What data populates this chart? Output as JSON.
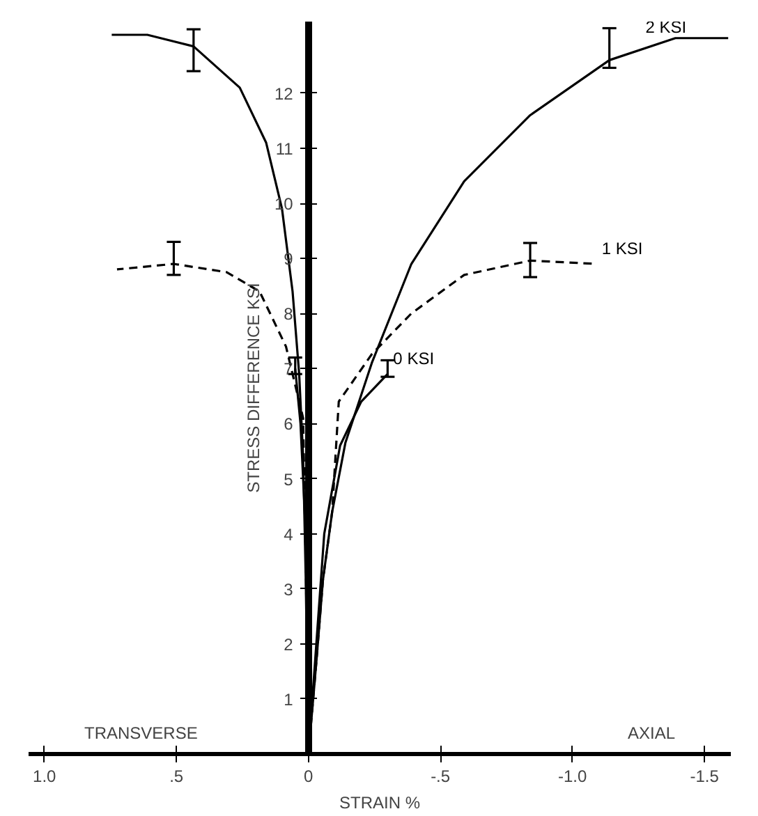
{
  "chart_data": {
    "type": "line",
    "xlabel": "STRAIN %",
    "ylabel": "STRESS DIFFERENCE KSI",
    "xlim": [
      1.06,
      -1.6
    ],
    "ylim": [
      0,
      13.3
    ],
    "xticks": [
      {
        "value": 1.0,
        "label": "1.0"
      },
      {
        "value": 0.5,
        "label": ".5"
      },
      0,
      {
        "value": -0.5,
        "label": "-.5"
      },
      {
        "value": -1.0,
        "label": "-1.0"
      },
      {
        "value": -1.5,
        "label": "-1.5"
      }
    ],
    "yticks": [
      1,
      2,
      3,
      4,
      5,
      6,
      7,
      8,
      9,
      10,
      11,
      12
    ],
    "grid": false,
    "marker": "none",
    "line_style": "solid",
    "annotations": [
      "TRANSVERSE",
      "AXIAL"
    ],
    "series": [
      {
        "color": "#000000",
        "x": [
          0,
          0.01,
          0.02,
          0.035,
          0.06,
          0.1,
          0.16,
          0.26,
          0.435,
          0.61,
          0.745
        ],
        "values": [
          0,
          3.16,
          5.4,
          6.9,
          8.4,
          9.9,
          11.1,
          12.1,
          12.85,
          13.06,
          13.06
        ],
        "errors": [
          null,
          null,
          null,
          null,
          null,
          null,
          null,
          null,
          [
            12.4,
            13.16
          ],
          null,
          null
        ]
      },
      {
        "name": "2 KSI",
        "color": "#000000",
        "x": [
          0,
          -0.03,
          -0.055,
          -0.09,
          -0.14,
          -0.24,
          -0.39,
          -0.59,
          -0.84,
          -1.14,
          -1.39,
          -1.59
        ],
        "values": [
          0,
          1.67,
          3.16,
          4.4,
          5.65,
          7.1,
          8.9,
          10.4,
          11.6,
          12.6,
          13.0,
          13.0
        ],
        "errors": [
          null,
          null,
          null,
          null,
          null,
          null,
          null,
          null,
          null,
          [
            12.46,
            13.18
          ],
          null,
          null
        ]
      },
      {
        "color": "#000000",
        "line_style": "dashed",
        "x": [
          0,
          0.01,
          0.02,
          0.085,
          0.185,
          0.31,
          0.51,
          0.725
        ],
        "values": [
          0,
          3.5,
          6.1,
          7.4,
          8.4,
          8.75,
          8.9,
          8.8
        ],
        "errors": [
          null,
          null,
          null,
          null,
          null,
          null,
          [
            8.7,
            9.3
          ],
          null
        ]
      },
      {
        "name": "1 KSI",
        "color": "#000000",
        "line_style": "dashed",
        "x": [
          0,
          -0.03,
          -0.055,
          -0.09,
          -0.115,
          -0.24,
          -0.39,
          -0.59,
          -0.84,
          -1.09
        ],
        "values": [
          0,
          1.67,
          3.16,
          4.4,
          6.4,
          7.26,
          8.0,
          8.7,
          8.96,
          8.9
        ],
        "errors": [
          null,
          null,
          null,
          null,
          null,
          null,
          null,
          null,
          [
            8.66,
            9.28
          ],
          null
        ]
      },
      {
        "color": "#000000",
        "x": [
          0,
          0.01,
          0.03,
          0.05
        ],
        "values": [
          0,
          4,
          6,
          7.0
        ],
        "errors": [
          null,
          null,
          null,
          [
            6.9,
            7.2
          ]
        ]
      },
      {
        "name": "0 KSI",
        "color": "#000000",
        "x": [
          0,
          -0.03,
          -0.06,
          -0.12,
          -0.2,
          -0.3
        ],
        "values": [
          0,
          2,
          4,
          5.6,
          6.4,
          6.9
        ],
        "errors": [
          null,
          null,
          null,
          null,
          null,
          [
            6.85,
            7.15
          ]
        ]
      }
    ]
  }
}
